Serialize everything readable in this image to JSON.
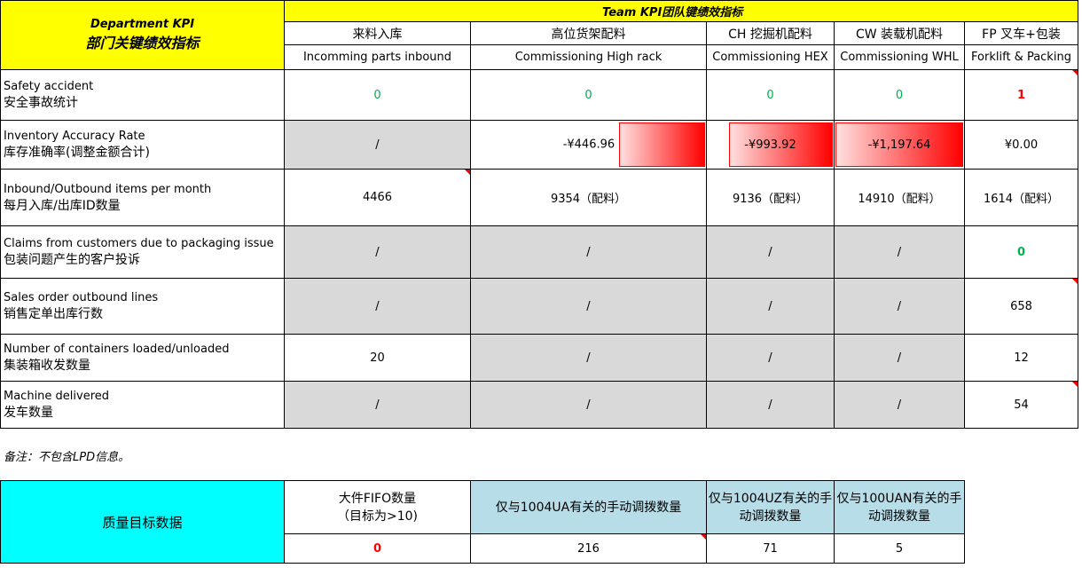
{
  "header": {
    "dept_en": "Department KPI",
    "dept_cn": "部门关键绩效指标",
    "team": "Team KPI团队键绩效指标",
    "columns": [
      {
        "cn": "来料入库",
        "en": "Incomming parts inbound"
      },
      {
        "cn": "高位货架配料",
        "en": "Commissioning High rack"
      },
      {
        "cn": "CH 挖掘机配料",
        "en": "Commissioning HEX"
      },
      {
        "cn": "CW 装载机配料",
        "en": "Commissioning WHL"
      },
      {
        "cn": "FP 叉车+包装",
        "en": "Forklift & Packing"
      }
    ]
  },
  "rows": [
    {
      "en": "Safety accident",
      "cn": "安全事故统计",
      "cells": [
        "0",
        "0",
        "0",
        "0",
        "1"
      ]
    },
    {
      "en": "Inventory Accuracy Rate",
      "cn": "库存准确率(调整金额合计)",
      "cells": [
        "/",
        "-¥446.96",
        "-¥993.92",
        "-¥1,197.64",
        "¥0.00"
      ],
      "data_bar_values": [
        null,
        -446.96,
        -993.92,
        -1197.64,
        0
      ]
    },
    {
      "en": "Inbound/Outbound items per month",
      "cn": "每月入库/出库ID数量",
      "cells": [
        "4466",
        "9354（配料）",
        "9136（配料）",
        "14910（配料）",
        "1614（配料）"
      ]
    },
    {
      "en": "Claims from customers due to packaging issue",
      "cn": "包装问题产生的客户投诉",
      "cells": [
        "/",
        "/",
        "/",
        "/",
        "0"
      ]
    },
    {
      "en": "Sales order outbound lines",
      "cn": "销售定单出库行数",
      "cells": [
        "/",
        "/",
        "/",
        "/",
        "658"
      ]
    },
    {
      "en": "Number of containers loaded/unloaded",
      "cn": "集装箱收发数量",
      "cells": [
        "20",
        "/",
        "/",
        "/",
        "12"
      ]
    },
    {
      "en": "Machine delivered",
      "cn": "发车数量",
      "cells": [
        "/",
        "/",
        "/",
        "/",
        "54"
      ]
    }
  ],
  "note": "备注：不包含LPD信息。",
  "quality": {
    "title": "质量目标数据",
    "headers": [
      "大件FIFO数量\n（目标为>10)",
      "仅与1004UA有关的手动调拨数量",
      "仅与1004UZ有关的手动调拨数量",
      "仅与100UAN有关的手动调拨数量"
    ],
    "values": [
      "0",
      "216",
      "71",
      "5"
    ]
  },
  "colors": {
    "header_yellow": "#ffff00",
    "na_grey": "#d9d9d9",
    "good_green": "#00b050",
    "bad_red": "#ff0000",
    "quality_cyan": "#00ffff",
    "quality_blue": "#b7dde8"
  }
}
